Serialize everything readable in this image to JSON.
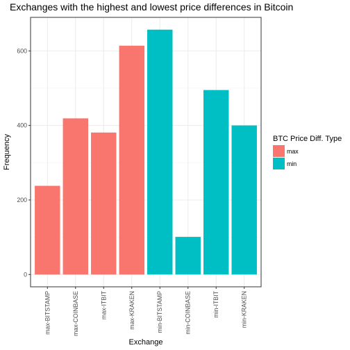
{
  "chart_data": {
    "type": "bar",
    "title": "Exchanges with the highest and lowest price differences in Bitcoin",
    "xlabel": "Exchange",
    "ylabel": "Frequency",
    "categories": [
      "max-BITSTAMP",
      "max-COINBASE",
      "max-ITBIT",
      "max-KRAKEN",
      "min-BITSTAMP",
      "min-COINBASE",
      "min-ITBIT",
      "min-KRAKEN"
    ],
    "values": [
      238,
      419,
      381,
      614,
      657,
      101,
      495,
      400
    ],
    "groups": [
      "max",
      "max",
      "max",
      "max",
      "min",
      "min",
      "min",
      "min"
    ],
    "ylim": [
      -33,
      690
    ],
    "yticks": [
      0,
      200,
      400,
      600
    ],
    "grid": true,
    "legend": {
      "title": "BTC Price Diff. Type",
      "position": "right",
      "entries": [
        {
          "label": "max",
          "color": "#F8766D"
        },
        {
          "label": "min",
          "color": "#00BFC4"
        }
      ]
    }
  }
}
